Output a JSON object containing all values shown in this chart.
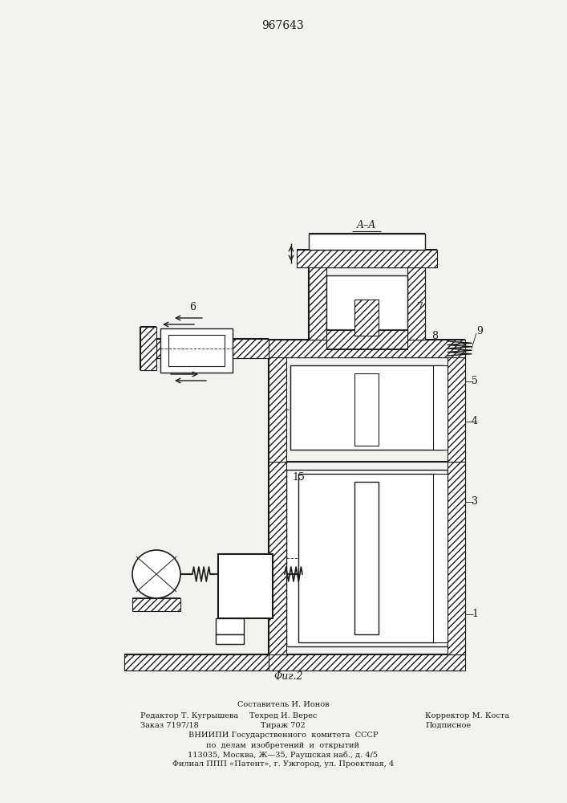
{
  "title": "967643",
  "fig_label": "Φиг.2",
  "section_label": "A–A",
  "background_color": "#f2f2ee",
  "line_color": "#1a1a1a",
  "bottom_text_line0": "Составитель И. Ионов",
  "bottom_text_line1_left": "Редактор Т. Кугрышева",
  "bottom_text_line1_mid": "Техред И. Верес",
  "bottom_text_line1_right": "Корректор М. Коста",
  "bottom_text_line2_left": "Заказ 7197/18",
  "bottom_text_line2_mid": "Тираж 702",
  "bottom_text_line2_right": "Подписное",
  "bottom_text_line3": "ВНИИПИ Государственного  комитета  СССР",
  "bottom_text_line4": "по  делам  изобретений  и  открытий",
  "bottom_text_line5": "113035, Москва, Ж—35, Раушская наб., д. 4/5",
  "bottom_text_line6": "Филиал ППП «Патент», г. Ужгород, ул. Проектная, 4"
}
